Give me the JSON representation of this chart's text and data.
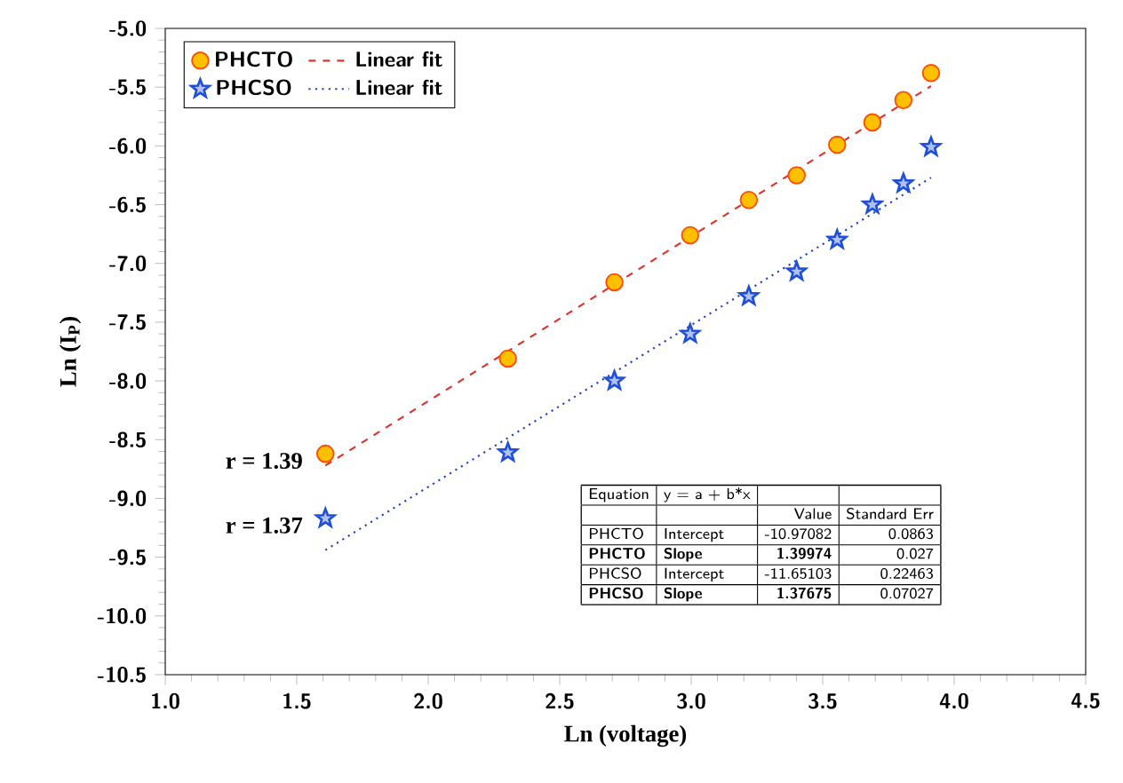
{
  "chart_data": {
    "type": "scatter",
    "xlabel": "Ln (voltage)",
    "ylabel": "Ln (I$_{P}$)",
    "xlim": [
      1.0,
      4.5
    ],
    "ylim": [
      -10.5,
      -5.0
    ],
    "xticks": [
      {
        "value": 1.0,
        "label": "1.0"
      },
      {
        "value": 1.5,
        "label": "1.5"
      },
      {
        "value": 2.0,
        "label": "2.0"
      },
      {
        "value": 2.5,
        "label": "2.5"
      },
      {
        "value": 3.0,
        "label": "3.0"
      },
      {
        "value": 3.5,
        "label": "3.5"
      },
      {
        "value": 4.0,
        "label": "4.0"
      },
      {
        "value": 4.5,
        "label": "4.5"
      }
    ],
    "yticks": [
      {
        "value": -10.5,
        "label": "-10.5"
      },
      {
        "value": -10.0,
        "label": "-10.0"
      },
      {
        "value": -9.5,
        "label": "-9.5"
      },
      {
        "value": -9.0,
        "label": "-9.0"
      },
      {
        "value": -8.5,
        "label": "-8.5"
      },
      {
        "value": -8.0,
        "label": "-8.0"
      },
      {
        "value": -7.5,
        "label": "-7.5"
      },
      {
        "value": -7.0,
        "label": "-7.0"
      },
      {
        "value": -6.5,
        "label": "-6.5"
      },
      {
        "value": -6.0,
        "label": "-6.0"
      },
      {
        "value": -5.5,
        "label": "-5.5"
      },
      {
        "value": -5.0,
        "label": "-5.0"
      }
    ],
    "legend": "top left",
    "series": [
      {
        "name": "PHCTO",
        "type": "scatter",
        "marker": "circle",
        "color": "#ffc000",
        "x": [
          1.609,
          2.303,
          2.708,
          2.996,
          3.219,
          3.401,
          3.555,
          3.689,
          3.807,
          3.912
        ],
        "values": [
          -8.62,
          -7.81,
          -7.16,
          -6.76,
          -6.46,
          -6.25,
          -5.99,
          -5.8,
          -5.61,
          -5.38
        ]
      },
      {
        "name": "Linear fit",
        "type": "line",
        "line_style": "dashed",
        "color": "#e0302a",
        "x": [
          1.609,
          3.912
        ],
        "values": [
          -8.72,
          -5.49
        ]
      },
      {
        "name": "PHCSO",
        "type": "scatter",
        "marker": "star",
        "color": "#1f4fd8",
        "x": [
          1.609,
          2.303,
          2.708,
          2.996,
          3.219,
          3.401,
          3.555,
          3.689,
          3.807,
          3.912
        ],
        "values": [
          -9.17,
          -8.61,
          -8.0,
          -7.6,
          -7.28,
          -7.07,
          -6.8,
          -6.5,
          -6.32,
          -6.01
        ]
      },
      {
        "name": "Linear fit",
        "type": "line",
        "line_style": "dotted",
        "color": "#2040c0",
        "x": [
          1.609,
          3.912
        ],
        "values": [
          -9.44,
          -6.27
        ]
      }
    ],
    "annotations": [
      {
        "text": "r = 1.39",
        "x": 1.609,
        "y": -8.62
      },
      {
        "text": "r = 1.37",
        "x": 1.609,
        "y": -9.17
      },
      "Equation",
      "y = a + b*x",
      "Value",
      "Standard Err",
      "PHCTO",
      "Intercept",
      "-10.97082",
      "0.0863",
      "PHCTO",
      "Slope",
      "1.39974",
      "0.027",
      "PHCSO",
      "Intercept",
      "-11.65103",
      "0.22463",
      "PHCSO",
      "Slope",
      "1.37675",
      "0.07027"
    ]
  }
}
